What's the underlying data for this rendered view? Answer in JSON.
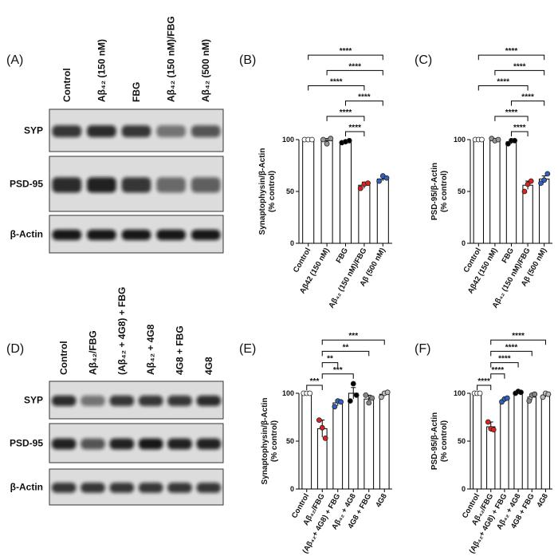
{
  "blots": [
    {
      "panel": "(A)",
      "lanes": [
        "Control",
        "Aβ₄₂ (150 nM)",
        "FBG",
        "Aβ₄₂ (150 nM)/FBG",
        "Aβ₄₂ (500 nM)"
      ],
      "rows": [
        "SYP",
        "PSD-95",
        "β-Actin"
      ]
    },
    {
      "panel": "(D)",
      "lanes": [
        "Control",
        "Aβ₄₂/FBG",
        "(Aβ₄₂ + 4G8) + FBG",
        "Aβ₄₂ + 4G8",
        "4G8 + FBG",
        "4G8"
      ],
      "rows": [
        "SYP",
        "PSD-95",
        "β-Actin"
      ]
    }
  ],
  "chart_data": [
    {
      "type": "bar",
      "panel": "(B)",
      "ylabel": [
        "Synaptophysin/β-Actin",
        "(% control)"
      ],
      "categories": [
        "Control",
        "Aβ42 (150 nM)",
        "FBG",
        "Aβ₄₂ (150 nM)/FBG",
        "Aβ (500 nM)"
      ],
      "values": [
        100,
        99,
        98,
        56,
        62
      ],
      "errors": [
        0,
        2,
        1,
        3,
        2
      ],
      "points": [
        [
          100,
          100,
          100
        ],
        [
          100,
          96,
          101
        ],
        [
          97,
          98,
          99
        ],
        [
          53,
          57,
          58
        ],
        [
          60,
          65,
          63
        ]
      ],
      "point_colors": [
        "#ffffff",
        "#999999",
        "#000000",
        "#e02020",
        "#3060c0"
      ],
      "color": "#ffffff",
      "ylim": [
        0,
        100
      ],
      "yticks": [
        0,
        50,
        100
      ],
      "comparisons": [
        {
          "between": [
            2,
            3
          ],
          "label": "****"
        },
        {
          "between": [
            1,
            3
          ],
          "label": "****"
        },
        {
          "between": [
            2,
            4
          ],
          "label": "****"
        },
        {
          "between": [
            0,
            3
          ],
          "label": "****"
        },
        {
          "between": [
            1,
            4
          ],
          "label": "****"
        },
        {
          "between": [
            0,
            4
          ],
          "label": "****"
        }
      ]
    },
    {
      "type": "bar",
      "panel": "(C)",
      "ylabel": [
        "PSD-95/β-Actin",
        "(% control)"
      ],
      "categories": [
        "Control",
        "Aβ42 (150 nM)",
        "FBG",
        "Aβ₄₂ (150 nM)/FBG",
        "Aβ (500 nM)"
      ],
      "values": [
        100,
        100,
        98,
        56,
        62
      ],
      "errors": [
        0,
        1,
        2,
        4,
        3
      ],
      "points": [
        [
          100,
          100,
          100
        ],
        [
          101,
          99,
          100
        ],
        [
          96,
          99,
          99
        ],
        [
          50,
          57,
          60
        ],
        [
          58,
          61,
          67
        ]
      ],
      "point_colors": [
        "#ffffff",
        "#999999",
        "#000000",
        "#e02020",
        "#3060c0"
      ],
      "color": "#ffffff",
      "ylim": [
        0,
        100
      ],
      "yticks": [
        0,
        50,
        100
      ],
      "comparisons": [
        {
          "between": [
            2,
            3
          ],
          "label": "****"
        },
        {
          "between": [
            1,
            3
          ],
          "label": "****"
        },
        {
          "between": [
            2,
            4
          ],
          "label": "****"
        },
        {
          "between": [
            0,
            3
          ],
          "label": "****"
        },
        {
          "between": [
            1,
            4
          ],
          "label": "****"
        },
        {
          "between": [
            0,
            4
          ],
          "label": "****"
        }
      ]
    },
    {
      "type": "bar",
      "panel": "(E)",
      "ylabel": [
        "Synaptophysin/β-Actin",
        "(% control)"
      ],
      "categories": [
        "Control",
        "Aβ₄₂/FBG",
        "(Aβ₄₂+ 4G8) + FBG",
        "Aβ₄₂ + 4G8",
        "4G8 + FBG",
        "4G8"
      ],
      "values": [
        100,
        63,
        90,
        100,
        94,
        99
      ],
      "errors": [
        0,
        9,
        3,
        6,
        4,
        2
      ],
      "points": [
        [
          100,
          100,
          100
        ],
        [
          72,
          64,
          53
        ],
        [
          86,
          92,
          91
        ],
        [
          92,
          110,
          98
        ],
        [
          98,
          90,
          95
        ],
        [
          96,
          100,
          101
        ]
      ],
      "point_colors": [
        "#ffffff",
        "#e02020",
        "#3060c0",
        "#000000",
        "#888888",
        "#bbbbbb"
      ],
      "color": "#ffffff",
      "ylim": [
        0,
        100
      ],
      "yticks": [
        0,
        50,
        100
      ],
      "comparisons": [
        {
          "between": [
            0,
            1
          ],
          "label": "***"
        },
        {
          "between": [
            1,
            3
          ],
          "label": "***"
        },
        {
          "between": [
            1,
            2
          ],
          "label": "**"
        },
        {
          "between": [
            1,
            4
          ],
          "label": "**"
        },
        {
          "between": [
            1,
            5
          ],
          "label": "***"
        }
      ]
    },
    {
      "type": "bar",
      "panel": "(F)",
      "ylabel": [
        "PSD-95/β-Actin",
        "(% control)"
      ],
      "categories": [
        "Control",
        "Aβ₄₂/FBG",
        "(Aβ₄₂+ 4G8) + FBG",
        "Aβ₄₂ + 4G8",
        "4G8 + FBG",
        "4G8"
      ],
      "values": [
        100,
        65,
        93,
        101,
        96,
        98
      ],
      "errors": [
        0,
        5,
        2,
        1,
        3,
        2
      ],
      "points": [
        [
          100,
          100,
          100
        ],
        [
          70,
          63,
          62
        ],
        [
          91,
          94,
          95
        ],
        [
          100,
          102,
          101
        ],
        [
          92,
          98,
          99
        ],
        [
          96,
          100,
          99
        ]
      ],
      "point_colors": [
        "#ffffff",
        "#e02020",
        "#3060c0",
        "#000000",
        "#888888",
        "#bbbbbb"
      ],
      "color": "#ffffff",
      "ylim": [
        0,
        100
      ],
      "yticks": [
        0,
        50,
        100
      ],
      "comparisons": [
        {
          "between": [
            0,
            1
          ],
          "label": "****"
        },
        {
          "between": [
            1,
            2
          ],
          "label": "****"
        },
        {
          "between": [
            1,
            3
          ],
          "label": "****"
        },
        {
          "between": [
            1,
            4
          ],
          "label": "****"
        },
        {
          "between": [
            1,
            5
          ],
          "label": "****"
        }
      ]
    }
  ]
}
